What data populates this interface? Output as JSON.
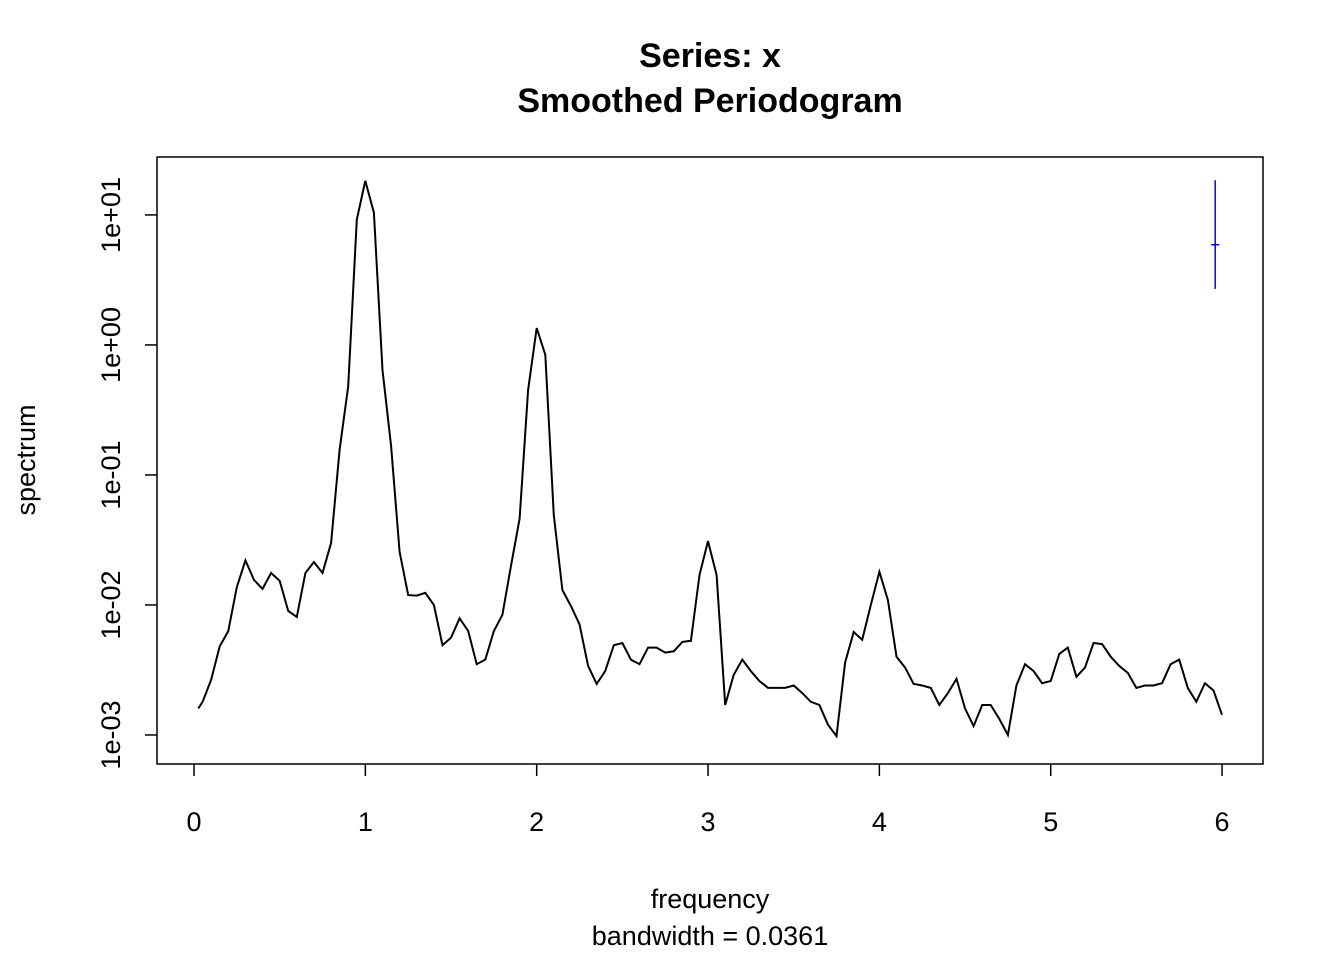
{
  "chart_data": {
    "type": "line",
    "title": "Series: x",
    "subtitle": "Smoothed Periodogram",
    "x_label": "frequency",
    "x_note": "bandwidth = 0.0361",
    "y_label": "spectrum",
    "log_y": true,
    "color": "#000000",
    "x": [
      0.025,
      0.05,
      0.1,
      0.15,
      0.2,
      0.25,
      0.3,
      0.35,
      0.4,
      0.45,
      0.5,
      0.55,
      0.6,
      0.65,
      0.7,
      0.75,
      0.8,
      0.85,
      0.9,
      0.95,
      1.0,
      1.05,
      1.1,
      1.15,
      1.2,
      1.25,
      1.3,
      1.35,
      1.4,
      1.45,
      1.5,
      1.55,
      1.6,
      1.65,
      1.7,
      1.75,
      1.8,
      1.85,
      1.9,
      1.95,
      2.0,
      2.05,
      2.1,
      2.15,
      2.2,
      2.25,
      2.3,
      2.35,
      2.4,
      2.45,
      2.5,
      2.55,
      2.6,
      2.65,
      2.7,
      2.75,
      2.8,
      2.85,
      2.9,
      2.95,
      3.0,
      3.05,
      3.1,
      3.15,
      3.2,
      3.25,
      3.3,
      3.35,
      3.4,
      3.45,
      3.5,
      3.55,
      3.6,
      3.65,
      3.7,
      3.75,
      3.8,
      3.85,
      3.9,
      3.95,
      4.0,
      4.05,
      4.1,
      4.15,
      4.2,
      4.25,
      4.3,
      4.35,
      4.4,
      4.45,
      4.5,
      4.55,
      4.6,
      4.65,
      4.7,
      4.75,
      4.8,
      4.85,
      4.9,
      4.95,
      5.0,
      5.05,
      5.1,
      5.15,
      5.2,
      5.25,
      5.3,
      5.35,
      5.4,
      5.45,
      5.5,
      5.55,
      5.6,
      5.65,
      5.7,
      5.75,
      5.8,
      5.85,
      5.9,
      5.95,
      6.0
    ],
    "values": [
      0.0016,
      0.0018,
      0.00265,
      0.0048,
      0.0063,
      0.0137,
      0.022,
      0.0156,
      0.0133,
      0.0176,
      0.0153,
      0.009,
      0.0081,
      0.0176,
      0.0214,
      0.0176,
      0.03,
      0.156,
      0.48,
      9.2,
      18.3,
      10.4,
      0.64,
      0.167,
      0.0256,
      0.0119,
      0.0118,
      0.0124,
      0.01,
      0.0049,
      0.0056,
      0.0079,
      0.0063,
      0.0035,
      0.0038,
      0.0063,
      0.0084,
      0.02,
      0.046,
      0.45,
      1.35,
      0.84,
      0.049,
      0.013,
      0.0098,
      0.0071,
      0.0034,
      0.00247,
      0.0031,
      0.0049,
      0.0051,
      0.0038,
      0.0035,
      0.0047,
      0.0047,
      0.0043,
      0.0044,
      0.0052,
      0.0053,
      0.017,
      0.031,
      0.017,
      0.0017,
      0.0029,
      0.0038,
      0.0031,
      0.0026,
      0.0023,
      0.0023,
      0.0023,
      0.0024,
      0.0021,
      0.0018,
      0.0017,
      0.0012,
      0.00098,
      0.0036,
      0.0062,
      0.0054,
      0.01,
      0.018,
      0.0109,
      0.004,
      0.0033,
      0.00247,
      0.0024,
      0.0023,
      0.0017,
      0.0021,
      0.0027,
      0.0016,
      0.00117,
      0.0017,
      0.0017,
      0.00133,
      0.001,
      0.0024,
      0.0035,
      0.0031,
      0.0025,
      0.0026,
      0.0042,
      0.0047,
      0.0028,
      0.0033,
      0.0051,
      0.005,
      0.004,
      0.0034,
      0.003,
      0.0023,
      0.0024,
      0.0024,
      0.0025,
      0.0035,
      0.0038,
      0.0023,
      0.0018,
      0.0025,
      0.0022,
      0.00143
    ],
    "ci_bar": {
      "x": 5.96,
      "center": 5.9,
      "lower": 2.7,
      "upper": 18.5,
      "color": "#0000ff"
    },
    "xlim": [
      -0.216,
      6.239
    ],
    "xticks": [
      0,
      1,
      2,
      3,
      4,
      5,
      6
    ],
    "ylim": [
      0.000598,
      27.9
    ],
    "yticks": [
      {
        "value": 0.001,
        "label": "1e-03"
      },
      {
        "value": 0.01,
        "label": "1e-02"
      },
      {
        "value": 0.1,
        "label": "1e-01"
      },
      {
        "value": 1,
        "label": "1e+00"
      },
      {
        "value": 10,
        "label": "1e+01"
      }
    ]
  }
}
